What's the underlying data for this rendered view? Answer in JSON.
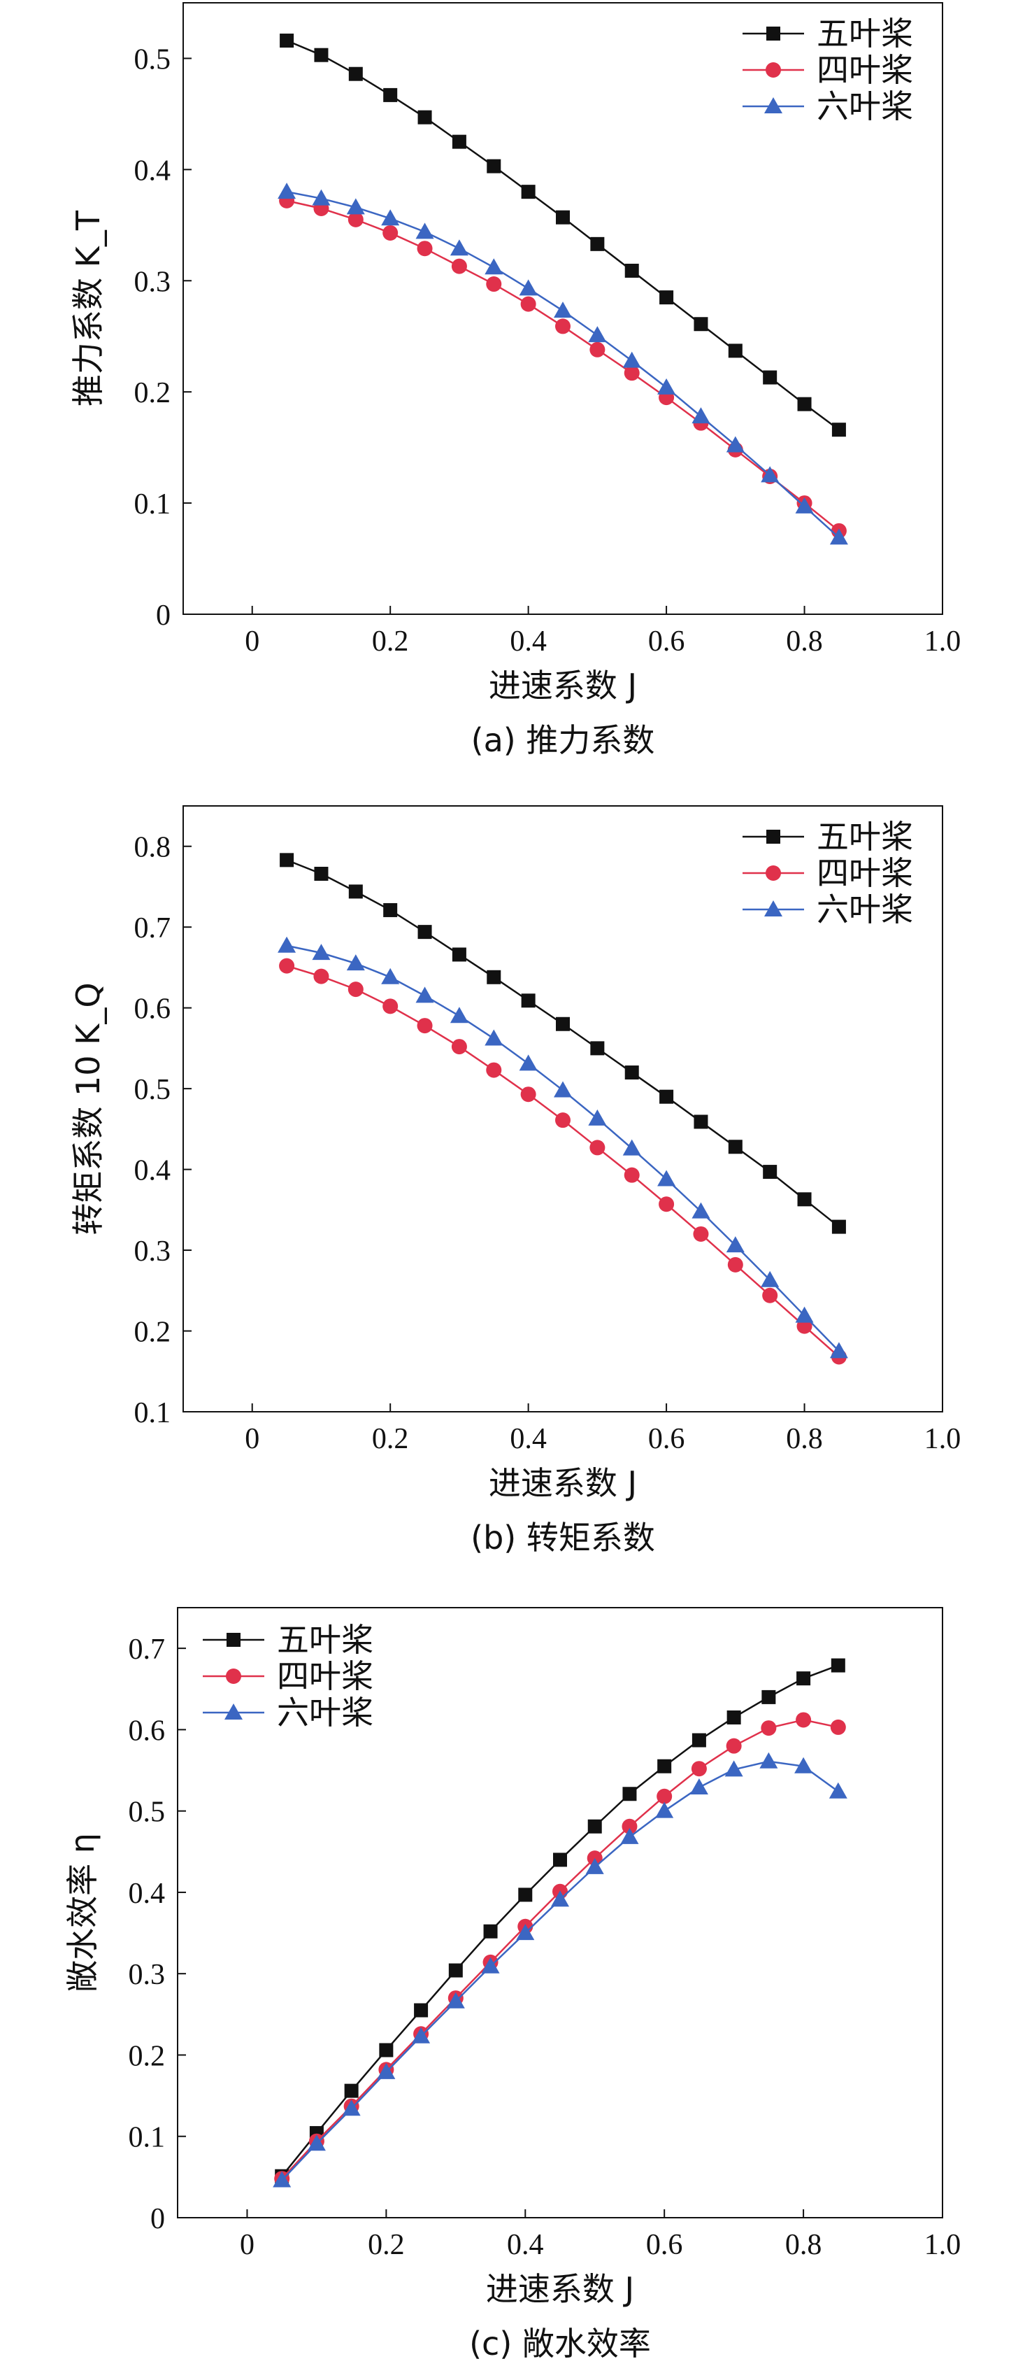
{
  "chart_data": [
    {
      "type": "line",
      "caption": "(a) 推力系数",
      "xlabel": "进速系数 J",
      "ylabel": "推力系数 K_T",
      "xlim": [
        -0.1,
        1.0
      ],
      "ylim": [
        0,
        0.55
      ],
      "xticks": [
        0,
        0.2,
        0.4,
        0.6,
        0.8,
        1.0
      ],
      "xtick_labels": [
        "0",
        "0.2",
        "0.4",
        "0.6",
        "0.8",
        "1.0"
      ],
      "yticks": [
        0,
        0.1,
        0.2,
        0.3,
        0.4,
        0.5
      ],
      "ytick_labels": [
        "0",
        "0.1",
        "0.2",
        "0.3",
        "0.4",
        "0.5"
      ],
      "legend_position": "top-right",
      "x": [
        0.05,
        0.1,
        0.15,
        0.2,
        0.25,
        0.3,
        0.35,
        0.4,
        0.45,
        0.5,
        0.55,
        0.6,
        0.65,
        0.7,
        0.75,
        0.8,
        0.85
      ],
      "series": [
        {
          "name": "五叶桨",
          "marker": "square",
          "color": "#111111",
          "values": [
            0.516,
            0.503,
            0.486,
            0.467,
            0.447,
            0.425,
            0.403,
            0.38,
            0.357,
            0.333,
            0.309,
            0.285,
            0.261,
            0.237,
            0.213,
            0.189,
            0.166
          ]
        },
        {
          "name": "四叶桨",
          "marker": "circle",
          "color": "#e0314b",
          "values": [
            0.372,
            0.365,
            0.355,
            0.343,
            0.329,
            0.313,
            0.297,
            0.279,
            0.259,
            0.238,
            0.217,
            0.195,
            0.172,
            0.148,
            0.124,
            0.1,
            0.075
          ]
        },
        {
          "name": "六叶桨",
          "marker": "triangle",
          "color": "#3b66c2",
          "values": [
            0.38,
            0.374,
            0.366,
            0.356,
            0.344,
            0.329,
            0.312,
            0.293,
            0.273,
            0.251,
            0.228,
            0.204,
            0.178,
            0.152,
            0.125,
            0.097,
            0.069
          ]
        }
      ]
    },
    {
      "type": "line",
      "caption": "(b) 转矩系数",
      "xlabel": "进速系数 J",
      "ylabel": "转矩系数 10 K_Q",
      "xlim": [
        -0.1,
        1.0
      ],
      "ylim": [
        0.1,
        0.85
      ],
      "xticks": [
        0,
        0.2,
        0.4,
        0.6,
        0.8,
        1.0
      ],
      "xtick_labels": [
        "0",
        "0.2",
        "0.4",
        "0.6",
        "0.8",
        "1.0"
      ],
      "yticks": [
        0.1,
        0.2,
        0.3,
        0.4,
        0.5,
        0.6,
        0.7,
        0.8
      ],
      "ytick_labels": [
        "0.1",
        "0.2",
        "0.3",
        "0.4",
        "0.5",
        "0.6",
        "0.7",
        "0.8"
      ],
      "legend_position": "top-right",
      "x": [
        0.05,
        0.1,
        0.15,
        0.2,
        0.25,
        0.3,
        0.35,
        0.4,
        0.45,
        0.5,
        0.55,
        0.6,
        0.65,
        0.7,
        0.75,
        0.8,
        0.85
      ],
      "series": [
        {
          "name": "五叶桨",
          "marker": "square",
          "color": "#111111",
          "values": [
            0.783,
            0.766,
            0.744,
            0.721,
            0.694,
            0.666,
            0.638,
            0.609,
            0.58,
            0.55,
            0.52,
            0.49,
            0.459,
            0.428,
            0.397,
            0.363,
            0.329
          ]
        },
        {
          "name": "四叶桨",
          "marker": "circle",
          "color": "#e0314b",
          "values": [
            0.652,
            0.639,
            0.623,
            0.602,
            0.578,
            0.552,
            0.523,
            0.493,
            0.461,
            0.427,
            0.393,
            0.357,
            0.32,
            0.282,
            0.244,
            0.206,
            0.168
          ]
        },
        {
          "name": "六叶桨",
          "marker": "triangle",
          "color": "#3b66c2",
          "values": [
            0.677,
            0.668,
            0.655,
            0.638,
            0.615,
            0.59,
            0.562,
            0.531,
            0.498,
            0.463,
            0.426,
            0.388,
            0.348,
            0.306,
            0.263,
            0.219,
            0.175
          ]
        }
      ]
    },
    {
      "type": "line",
      "caption": "(c) 敞水效率",
      "xlabel": "进速系数 J",
      "ylabel": "敞水效率 η",
      "xlim": [
        -0.1,
        1.0
      ],
      "ylim": [
        0,
        0.75
      ],
      "xticks": [
        0,
        0.2,
        0.4,
        0.6,
        0.8,
        1.0
      ],
      "xtick_labels": [
        "0",
        "0.2",
        "0.4",
        "0.6",
        "0.8",
        "1.0"
      ],
      "yticks": [
        0,
        0.1,
        0.2,
        0.3,
        0.4,
        0.5,
        0.6,
        0.7
      ],
      "ytick_labels": [
        "0",
        "0.1",
        "0.2",
        "0.3",
        "0.4",
        "0.5",
        "0.6",
        "0.7"
      ],
      "legend_position": "top-left",
      "x": [
        0.05,
        0.1,
        0.15,
        0.2,
        0.25,
        0.3,
        0.35,
        0.4,
        0.45,
        0.5,
        0.55,
        0.6,
        0.65,
        0.7,
        0.75,
        0.8,
        0.85
      ],
      "series": [
        {
          "name": "五叶桨",
          "marker": "square",
          "color": "#111111",
          "values": [
            0.051,
            0.104,
            0.156,
            0.206,
            0.255,
            0.304,
            0.352,
            0.397,
            0.44,
            0.481,
            0.521,
            0.555,
            0.587,
            0.615,
            0.64,
            0.663,
            0.679
          ]
        },
        {
          "name": "四叶桨",
          "marker": "circle",
          "color": "#e0314b",
          "values": [
            0.048,
            0.094,
            0.137,
            0.182,
            0.226,
            0.27,
            0.314,
            0.358,
            0.401,
            0.442,
            0.481,
            0.518,
            0.552,
            0.58,
            0.602,
            0.612,
            0.603
          ]
        },
        {
          "name": "六叶桨",
          "marker": "triangle",
          "color": "#3b66c2",
          "values": [
            0.046,
            0.091,
            0.134,
            0.179,
            0.223,
            0.266,
            0.309,
            0.35,
            0.391,
            0.431,
            0.468,
            0.5,
            0.529,
            0.551,
            0.561,
            0.555,
            0.524
          ]
        }
      ]
    }
  ]
}
